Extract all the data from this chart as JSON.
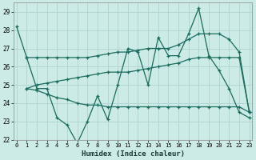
{
  "xlabel": "Humidex (Indice chaleur)",
  "ylim": [
    22,
    29.5
  ],
  "xlim": [
    -0.3,
    23.3
  ],
  "yticks": [
    22,
    23,
    24,
    25,
    26,
    27,
    28,
    29
  ],
  "xticks": [
    0,
    1,
    2,
    3,
    4,
    5,
    6,
    7,
    8,
    9,
    10,
    11,
    12,
    13,
    14,
    15,
    16,
    17,
    18,
    19,
    20,
    21,
    22,
    23
  ],
  "bg_color": "#cceae6",
  "grid_color": "#aed4cf",
  "line_color": "#1a6b5e",
  "line1_x": [
    0,
    1,
    2,
    3,
    4,
    5,
    6,
    7,
    8,
    9,
    10,
    11,
    12,
    13,
    14,
    15,
    16,
    17,
    18,
    19,
    20,
    21,
    22,
    23
  ],
  "line1_y": [
    28.2,
    26.5,
    24.8,
    24.8,
    23.2,
    22.8,
    21.8,
    23.0,
    24.4,
    23.1,
    25.0,
    27.0,
    26.8,
    25.0,
    27.6,
    26.6,
    26.6,
    27.8,
    29.2,
    26.6,
    25.8,
    24.8,
    23.5,
    23.2
  ],
  "line2_x": [
    1,
    2,
    3,
    4,
    5,
    6,
    7,
    8,
    9,
    10,
    11,
    12,
    13,
    14,
    15,
    16,
    17,
    18,
    19,
    20,
    21,
    22,
    23
  ],
  "line2_y": [
    26.5,
    26.5,
    26.5,
    26.5,
    26.5,
    26.5,
    26.5,
    26.6,
    26.7,
    26.8,
    26.8,
    26.9,
    27.0,
    27.0,
    27.0,
    27.2,
    27.5,
    27.8,
    27.8,
    27.8,
    27.5,
    26.8,
    23.5
  ],
  "line3_x": [
    1,
    2,
    3,
    4,
    5,
    6,
    7,
    8,
    9,
    10,
    11,
    12,
    13,
    14,
    15,
    16,
    17,
    18,
    19,
    20,
    21,
    22,
    23
  ],
  "line3_y": [
    24.8,
    25.0,
    25.1,
    25.2,
    25.3,
    25.4,
    25.5,
    25.6,
    25.7,
    25.7,
    25.7,
    25.8,
    25.9,
    26.0,
    26.1,
    26.2,
    26.4,
    26.5,
    26.5,
    26.5,
    26.5,
    26.5,
    23.5
  ],
  "line4_x": [
    1,
    2,
    3,
    4,
    5,
    6,
    7,
    8,
    9,
    10,
    11,
    12,
    13,
    14,
    15,
    16,
    17,
    18,
    19,
    20,
    21,
    22,
    23
  ],
  "line4_y": [
    24.8,
    24.7,
    24.5,
    24.3,
    24.2,
    24.0,
    23.9,
    23.9,
    23.8,
    23.8,
    23.8,
    23.8,
    23.8,
    23.8,
    23.8,
    23.8,
    23.8,
    23.8,
    23.8,
    23.8,
    23.8,
    23.8,
    23.5
  ]
}
